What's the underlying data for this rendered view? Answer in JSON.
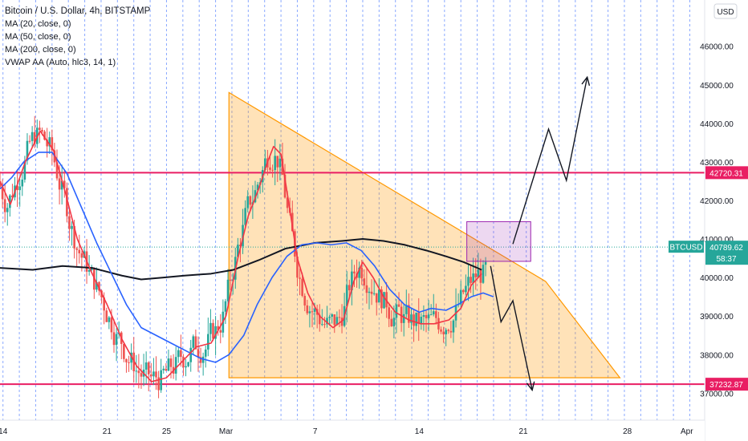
{
  "legend": {
    "title": "Bitcoin / U.S. Dollar, 4h, BITSTAMP",
    "indicators": [
      "MA (20, close, 0)",
      "MA (50, close, 0)",
      "MA (200, close, 0)",
      "VWAP AA (Auto, hlc3, 14, 1)"
    ]
  },
  "currency_button": "USD",
  "chart_data": {
    "type": "candlestick",
    "title": "Bitcoin / U.S. Dollar, 4h, BITSTAMP",
    "x_tick_labels": [
      "14",
      "21",
      "25",
      "Mar",
      "7",
      "14",
      "21",
      "28",
      "Apr"
    ],
    "x_tick_days": [
      14,
      21,
      25,
      29,
      35,
      42,
      49,
      56,
      60
    ],
    "x_range_days": [
      13.8,
      61.2
    ],
    "y_tick_labels": [
      "37000.00",
      "38000.00",
      "39000.00",
      "40000.00",
      "41000.00",
      "42000.00",
      "43000.00",
      "44000.00",
      "45000.00",
      "46000.00"
    ],
    "ylim": [
      36300,
      47200
    ],
    "levels": [
      {
        "label": "42720.31",
        "value": 42720.31,
        "color": "#e91e63"
      },
      {
        "label": "37232.87",
        "value": 37232.87,
        "color": "#e91e63"
      }
    ],
    "last_price": {
      "symbol": "BTCUSD",
      "price": "40789.62",
      "countdown": "58:37",
      "value": 40789.62,
      "color": "#26a69a"
    },
    "triangle": [
      [
        29.2,
        44800
      ],
      [
        50.5,
        39900
      ],
      [
        29.2,
        37400
      ],
      [
        55.5,
        37400
      ]
    ],
    "box": {
      "x0": 45.2,
      "x1": 49.5,
      "y_low": 40420,
      "y_high": 41450
    },
    "up_arrow": [
      [
        48.3,
        40870
      ],
      [
        50.7,
        43850
      ],
      [
        51.9,
        42520
      ],
      [
        53.3,
        45200
      ]
    ],
    "down_arrow": [
      [
        46.8,
        40300
      ],
      [
        47.5,
        38850
      ],
      [
        48.3,
        39400
      ],
      [
        49.6,
        37080
      ]
    ],
    "ma20": [
      [
        13.8,
        42500
      ],
      [
        14.5,
        41900
      ],
      [
        15.5,
        43000
      ],
      [
        16.5,
        43800
      ],
      [
        17.4,
        43300
      ],
      [
        18.2,
        42200
      ],
      [
        19,
        41000
      ],
      [
        20,
        40100
      ],
      [
        21,
        39300
      ],
      [
        22,
        38400
      ],
      [
        23,
        37700
      ],
      [
        24,
        37300
      ],
      [
        25,
        37400
      ],
      [
        26,
        37800
      ],
      [
        27,
        38200
      ],
      [
        28,
        38300
      ],
      [
        29,
        39000
      ],
      [
        29.8,
        40500
      ],
      [
        30.5,
        41600
      ],
      [
        31.2,
        42300
      ],
      [
        31.8,
        43000
      ],
      [
        32.2,
        43400
      ],
      [
        32.7,
        43200
      ],
      [
        33.2,
        42000
      ],
      [
        33.8,
        40500
      ],
      [
        34.5,
        39600
      ],
      [
        35.3,
        39000
      ],
      [
        36.2,
        38700
      ],
      [
        36.9,
        38900
      ],
      [
        37.6,
        39900
      ],
      [
        38.2,
        40400
      ],
      [
        38.9,
        40000
      ],
      [
        39.6,
        39500
      ],
      [
        40.4,
        39100
      ],
      [
        41.3,
        38900
      ],
      [
        42.1,
        38800
      ],
      [
        43,
        38800
      ],
      [
        44,
        38900
      ],
      [
        44.8,
        39200
      ],
      [
        45.5,
        39800
      ],
      [
        46.2,
        40100
      ]
    ],
    "ma50": [
      [
        13.8,
        42300
      ],
      [
        14.6,
        42600
      ],
      [
        15.4,
        43000
      ],
      [
        16.4,
        43250
      ],
      [
        17.3,
        43250
      ],
      [
        18.3,
        42700
      ],
      [
        19.3,
        41800
      ],
      [
        20.3,
        40900
      ],
      [
        21.3,
        40100
      ],
      [
        22.3,
        39300
      ],
      [
        23.3,
        38700
      ],
      [
        24.3,
        38500
      ],
      [
        25.3,
        38300
      ],
      [
        26.3,
        38100
      ],
      [
        27.3,
        37900
      ],
      [
        28.3,
        37800
      ],
      [
        29.2,
        38000
      ],
      [
        30.2,
        38500
      ],
      [
        31.1,
        39300
      ],
      [
        32.1,
        40000
      ],
      [
        33.1,
        40550
      ],
      [
        34.1,
        40850
      ],
      [
        35.1,
        40900
      ],
      [
        36.1,
        40850
      ],
      [
        37.1,
        40900
      ],
      [
        38.1,
        40700
      ],
      [
        39,
        40300
      ],
      [
        40,
        39700
      ],
      [
        41,
        39300
      ],
      [
        42,
        39100
      ],
      [
        42.8,
        39200
      ],
      [
        43.8,
        39150
      ],
      [
        44.6,
        39300
      ],
      [
        45.5,
        39500
      ],
      [
        46.3,
        39600
      ],
      [
        47,
        39500
      ]
    ],
    "ma200": [
      [
        13.8,
        40250
      ],
      [
        16,
        40200
      ],
      [
        18,
        40300
      ],
      [
        20,
        40250
      ],
      [
        22,
        40050
      ],
      [
        23.3,
        39950
      ],
      [
        24.8,
        40000
      ],
      [
        26.2,
        40050
      ],
      [
        28,
        40100
      ],
      [
        29.5,
        40200
      ],
      [
        31.2,
        40450
      ],
      [
        33,
        40750
      ],
      [
        35,
        40900
      ],
      [
        36.8,
        40950
      ],
      [
        38.2,
        41000
      ],
      [
        39.6,
        40950
      ],
      [
        41,
        40850
      ],
      [
        42.5,
        40700
      ],
      [
        43.8,
        40550
      ],
      [
        45,
        40400
      ],
      [
        46.2,
        40200
      ]
    ],
    "ohlc_synthesis_note_omitted": ""
  }
}
